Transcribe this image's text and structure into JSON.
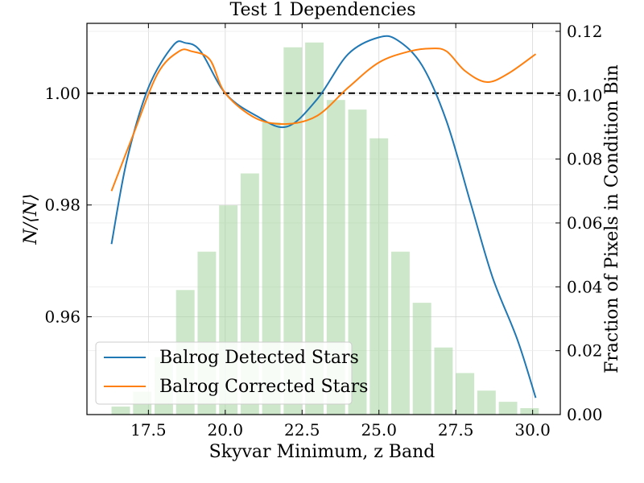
{
  "chart_data": {
    "type": "line",
    "title": "Test 1 Dependencies",
    "xlabel": "Skyvar Minimum, z Band",
    "ylabel": "N/⟨N⟩",
    "ylabel_right": "Fraction of Pixels in Condition Bin",
    "xlim": [
      15.5,
      30.9
    ],
    "ylim": [
      0.9425,
      1.0125
    ],
    "ylim_right": [
      0.0,
      0.1225
    ],
    "x_ticks": [
      "17.5",
      "20.0",
      "22.5",
      "25.0",
      "27.5",
      "30.0"
    ],
    "y_ticks": [
      "0.96",
      "0.98",
      "1.00"
    ],
    "y_ticks_right": [
      "0.00",
      "0.02",
      "0.04",
      "0.06",
      "0.08",
      "0.10",
      "0.12"
    ],
    "reference_line": 1.0,
    "grid": true,
    "legend_position": "lower-left",
    "series": [
      {
        "name": "Balrog Detected Stars",
        "color": "#1f77b4",
        "x": [
          16.3,
          16.8,
          17.5,
          18.3,
          18.7,
          19.2,
          20.0,
          21.0,
          22.0,
          23.0,
          24.0,
          25.0,
          25.6,
          26.4,
          27.2,
          28.0,
          28.7,
          29.5,
          30.1
        ],
        "y": [
          0.973,
          0.988,
          1.001,
          1.0085,
          1.009,
          1.0075,
          1.0,
          0.996,
          0.994,
          0.999,
          1.007,
          1.01,
          1.0095,
          1.005,
          0.995,
          0.98,
          0.967,
          0.956,
          0.9455
        ]
      },
      {
        "name": "Balrog Corrected Stars",
        "color": "#ff7f0e",
        "x": [
          16.3,
          17.0,
          17.8,
          18.5,
          18.9,
          19.5,
          20.0,
          21.0,
          22.0,
          23.0,
          24.0,
          25.0,
          26.0,
          26.7,
          27.2,
          27.8,
          28.5,
          29.2,
          30.1
        ],
        "y": [
          0.9825,
          0.9925,
          1.0035,
          1.0075,
          1.0075,
          1.006,
          1.0,
          0.9955,
          0.9945,
          0.996,
          1.001,
          1.0055,
          1.0075,
          1.008,
          1.0075,
          1.004,
          1.002,
          1.0035,
          1.007
        ]
      }
    ],
    "histogram": {
      "color": "#a3d39c",
      "bins": [
        {
          "x0": 16.3,
          "x1": 16.9,
          "value": 0.0025
        },
        {
          "x0": 17.0,
          "x1": 17.6,
          "value": 0.0072
        },
        {
          "x0": 17.7,
          "x1": 18.3,
          "value": 0.018
        },
        {
          "x0": 18.4,
          "x1": 19.0,
          "value": 0.039
        },
        {
          "x0": 19.1,
          "x1": 19.7,
          "value": 0.051
        },
        {
          "x0": 19.8,
          "x1": 20.4,
          "value": 0.0655
        },
        {
          "x0": 20.5,
          "x1": 21.1,
          "value": 0.0755
        },
        {
          "x0": 21.2,
          "x1": 21.8,
          "value": 0.0915
        },
        {
          "x0": 21.9,
          "x1": 22.5,
          "value": 0.115
        },
        {
          "x0": 22.6,
          "x1": 23.2,
          "value": 0.1165
        },
        {
          "x0": 23.3,
          "x1": 23.9,
          "value": 0.0985
        },
        {
          "x0": 24.0,
          "x1": 24.6,
          "value": 0.0955
        },
        {
          "x0": 24.7,
          "x1": 25.3,
          "value": 0.0865
        },
        {
          "x0": 25.4,
          "x1": 26.0,
          "value": 0.051
        },
        {
          "x0": 26.1,
          "x1": 26.7,
          "value": 0.035
        },
        {
          "x0": 26.8,
          "x1": 27.4,
          "value": 0.021
        },
        {
          "x0": 27.5,
          "x1": 28.1,
          "value": 0.013
        },
        {
          "x0": 28.2,
          "x1": 28.8,
          "value": 0.0075
        },
        {
          "x0": 28.9,
          "x1": 29.5,
          "value": 0.004
        },
        {
          "x0": 29.6,
          "x1": 30.2,
          "value": 0.002
        }
      ]
    }
  }
}
